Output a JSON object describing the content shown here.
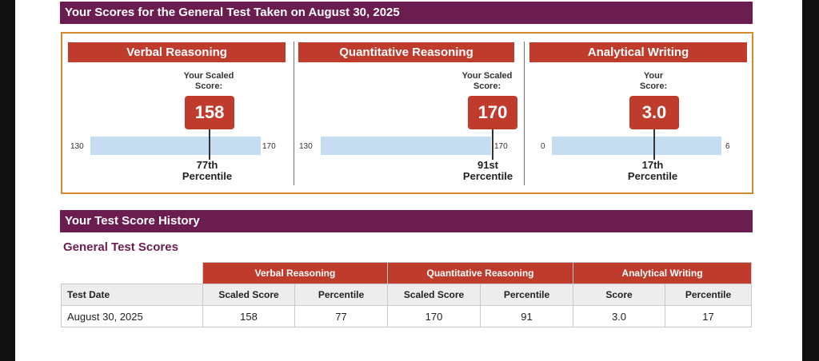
{
  "header": {
    "title": "Your Scores for the General Test Taken on August 30, 2025"
  },
  "score_panels": [
    {
      "heading": "Verbal Reasoning",
      "score_label_line1": "Your Scaled",
      "score_label_line2": "Score:",
      "score": "158",
      "scale_min": "130",
      "scale_max": "170",
      "percentile_value": "77th",
      "percentile_label": "Percentile",
      "score_fraction": 0.7
    },
    {
      "heading": "Quantitative Reasoning",
      "score_label_line1": "Your Scaled",
      "score_label_line2": "Score:",
      "score": "170",
      "scale_min": "130",
      "scale_max": "170",
      "percentile_value": "91st",
      "percentile_label": "Percentile",
      "score_fraction": 1.0
    },
    {
      "heading": "Analytical Writing",
      "score_label_line1": "Your",
      "score_label_line2": "Score:",
      "score": "3.0",
      "scale_min": "0",
      "scale_max": "6",
      "percentile_value": "17th",
      "percentile_label": "Percentile",
      "score_fraction": 0.5
    }
  ],
  "history": {
    "title": "Your Test Score History",
    "subtitle": "General Test Scores",
    "group_headers": [
      "Verbal Reasoning",
      "Quantitative Reasoning",
      "Analytical Writing"
    ],
    "column_headers": [
      "Test Date",
      "Scaled Score",
      "Percentile",
      "Scaled Score",
      "Percentile",
      "Score",
      "Percentile"
    ],
    "rows": [
      [
        "August 30, 2025",
        "158",
        "77",
        "170",
        "91",
        "3.0",
        "17"
      ]
    ]
  }
}
